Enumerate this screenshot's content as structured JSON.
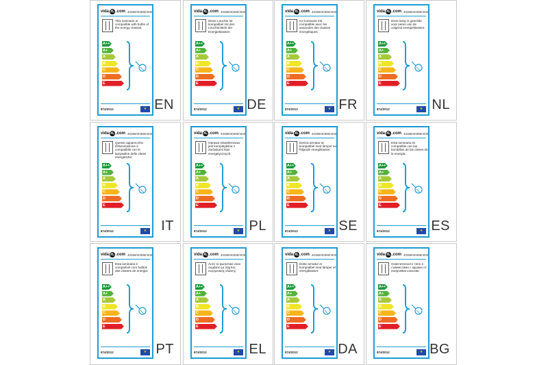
{
  "brand": {
    "name_left": "vida",
    "name_dot": "XL",
    "name_right": ".com"
  },
  "sku": "40389/40390/40391",
  "regulation": "874/2012",
  "eu_stars": "★",
  "energy_classes": [
    {
      "label": "A++",
      "color": "#1b9a3b"
    },
    {
      "label": "A+",
      "color": "#53b33a"
    },
    {
      "label": "A",
      "color": "#a6c93a"
    },
    {
      "label": "B",
      "color": "#f0e526"
    },
    {
      "label": "C",
      "color": "#f7b51b"
    },
    {
      "label": "D",
      "color": "#ee6d23"
    },
    {
      "label": "E",
      "color": "#e21e26"
    }
  ],
  "colors": {
    "frame": "#1d9bd3",
    "eu_blue": "#1f4aa8",
    "eu_star": "#f4d300"
  },
  "cards": [
    {
      "lang": "EN",
      "text": "This luminaire is compatible with bulbs of the energy classes:"
    },
    {
      "lang": "DE",
      "text": "Diese Leuchte ist kompatibel mit den Leuchtmitteln der Energieklassen:"
    },
    {
      "lang": "FR",
      "text": "Ce luminaire est compatible avec les ampoules des classes énergétiques:"
    },
    {
      "lang": "NL",
      "text": "Deze lamp is geschikt voor peren van de volgend energieklassen:"
    },
    {
      "lang": "IT",
      "text": "Questo apparecchio d'illuminazione è compatibile con le lampadine delle classi energetiche:"
    },
    {
      "lang": "PL",
      "text": "Oprawa oświetleniowa jest kompatybilna z żarówkami klas energetycznych:"
    },
    {
      "lang": "SE",
      "text": "Denna armatur är kompatibel med lampor av följande energiklasser:"
    },
    {
      "lang": "ES",
      "text": "Esta luminaria es compatible con las bombillas de las clases de la energía:"
    },
    {
      "lang": "PT",
      "text": "Esta luminária é compatível com bulbos das classes de energia:"
    },
    {
      "lang": "EL",
      "text": "Αυτό το φωτιστικό είναι συμβατό με λάμπες ενεργειακής κλάσης:"
    },
    {
      "lang": "DA",
      "text": "Dette armatur er kompatibel med lamper af energiklasser:"
    },
    {
      "lang": "BG",
      "text": "Осветителното тяло е съвместимо с крушки от енергийни класове:"
    }
  ]
}
